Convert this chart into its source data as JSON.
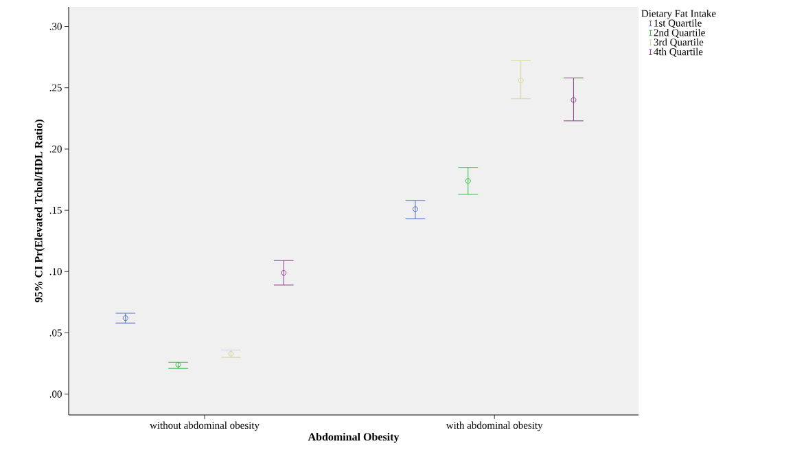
{
  "chart_data": {
    "type": "scatter",
    "xlabel": "Abdominal Obesity",
    "ylabel": "95% CI Pr(Elevated Tchol/HDL Ratio)",
    "legend_title": "Dietary Fat Intake",
    "categories": [
      "without abdominal obesity",
      "with abdominal obesity"
    ],
    "series": [
      {
        "name": "1st Quartile",
        "color": "#4f6bbf",
        "values": [
          0.062,
          0.151
        ],
        "errors": [
          [
            0.058,
            0.066
          ],
          [
            0.143,
            0.158
          ]
        ]
      },
      {
        "name": "2nd Quartile",
        "color": "#33bb44",
        "values": [
          0.024,
          0.174
        ],
        "errors": [
          [
            0.021,
            0.026
          ],
          [
            0.163,
            0.185
          ]
        ]
      },
      {
        "name": "3rd Quartile",
        "color": "#d8d4a0",
        "values": [
          0.033,
          0.256
        ],
        "errors": [
          [
            0.03,
            0.036
          ],
          [
            0.241,
            0.272
          ]
        ]
      },
      {
        "name": "4th Quartile",
        "color": "#8e3a8e",
        "values": [
          0.099,
          0.24
        ],
        "errors": [
          [
            0.089,
            0.109
          ],
          [
            0.223,
            0.258
          ]
        ]
      }
    ],
    "ylim": [
      -0.017,
      0.316
    ],
    "yticks": [
      {
        "value": 0.0,
        "label": ".00"
      },
      {
        "value": 0.05,
        "label": ".05"
      },
      {
        "value": 0.1,
        "label": ".10"
      },
      {
        "value": 0.15,
        "label": ".15"
      },
      {
        "value": 0.2,
        "label": ".20"
      },
      {
        "value": 0.25,
        "label": ".25"
      },
      {
        "value": 0.3,
        "label": ".30"
      }
    ],
    "marker": "circle",
    "legend": "top right",
    "grid": false
  }
}
